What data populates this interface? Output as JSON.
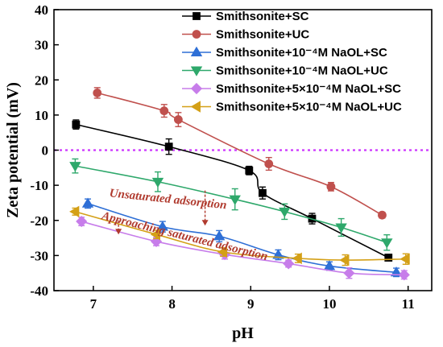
{
  "chart_data": {
    "type": "line",
    "xlabel": "pH",
    "ylabel": "Zeta potential (mV)",
    "xlim": [
      6.5,
      11.3
    ],
    "ylim": [
      -40,
      40
    ],
    "xticks": [
      7,
      8,
      9,
      10,
      11
    ],
    "yticks": [
      -40,
      -30,
      -20,
      -10,
      0,
      10,
      20,
      30,
      40
    ],
    "legend_position": "top-right",
    "reference_line": {
      "y": 0,
      "color": "#cc33ff",
      "style": "dotted"
    },
    "series": [
      {
        "name": "Smithsonite+SC",
        "color": "#000000",
        "marker": "square",
        "x": [
          6.78,
          7.96,
          8.98,
          9.15,
          9.78,
          10.75
        ],
        "y": [
          7.3,
          1.0,
          -5.8,
          -12.2,
          -19.5,
          -30.6
        ],
        "err": [
          1.3,
          2.2,
          1.2,
          1.7,
          1.5,
          0.9
        ]
      },
      {
        "name": "Smithsonite+UC",
        "color": "#c0504d",
        "marker": "circle",
        "x": [
          7.05,
          7.9,
          8.08,
          9.23,
          10.02,
          10.67
        ],
        "y": [
          16.3,
          11.2,
          8.7,
          -3.9,
          -10.4,
          -18.5
        ],
        "err": [
          1.5,
          1.8,
          2.0,
          1.8,
          1.2,
          0.8
        ]
      },
      {
        "name": "Smithsonite+10⁻⁴M NaOL+SC",
        "color": "#2e6fd6",
        "marker": "triangle-up",
        "x": [
          6.93,
          7.88,
          8.6,
          9.35,
          10.0,
          10.85
        ],
        "y": [
          -15.2,
          -21.8,
          -24.5,
          -29.8,
          -33.0,
          -34.8
        ],
        "err": [
          1.3,
          1.5,
          1.6,
          1.4,
          1.2,
          1.2
        ]
      },
      {
        "name": "Smithsonite+10⁻⁴M NaOL+UC",
        "color": "#2ea86b",
        "marker": "triangle-down",
        "x": [
          6.77,
          7.82,
          8.8,
          9.43,
          10.15,
          10.73
        ],
        "y": [
          -4.5,
          -9.0,
          -14.0,
          -17.5,
          -22.0,
          -26.3
        ],
        "err": [
          2.0,
          2.8,
          3.0,
          2.2,
          2.5,
          2.2
        ]
      },
      {
        "name": "Smithsonite+5×10⁻⁴M NaOL+SC",
        "color": "#c77dea",
        "marker": "diamond",
        "x": [
          6.85,
          7.8,
          8.67,
          9.48,
          10.25,
          10.95
        ],
        "y": [
          -20.3,
          -26.0,
          -29.7,
          -32.3,
          -35.0,
          -35.5
        ],
        "err": [
          1.2,
          1.2,
          1.3,
          1.0,
          1.5,
          1.2
        ]
      },
      {
        "name": "Smithsonite+5×10⁻⁴M NaOL+UC",
        "color": "#d4a017",
        "marker": "triangle-left",
        "x": [
          6.77,
          7.8,
          8.65,
          9.6,
          10.2,
          10.97
        ],
        "y": [
          -17.5,
          -24.0,
          -29.0,
          -30.8,
          -31.3,
          -31.0
        ],
        "err": [
          1.0,
          1.2,
          1.2,
          1.2,
          1.5,
          1.5
        ]
      }
    ],
    "annotations": [
      {
        "text": "Unsaturated adsorption",
        "x": 7.2,
        "y": -13.2,
        "color": "#b03a2e"
      },
      {
        "text": "Approaching saturated adsorption",
        "x": 7.1,
        "y": -19.6,
        "color": "#b03a2e"
      }
    ]
  }
}
